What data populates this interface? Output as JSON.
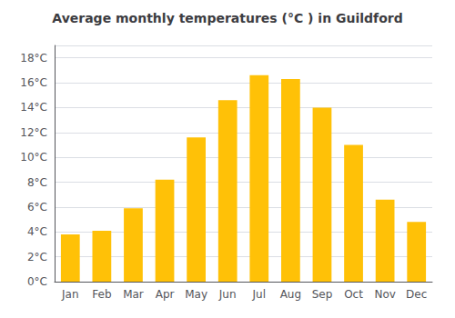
{
  "chart_data": {
    "type": "bar",
    "title": "Average monthly temperatures (°C ) in Guildford",
    "categories": [
      "Jan",
      "Feb",
      "Mar",
      "Apr",
      "May",
      "Jun",
      "Jul",
      "Aug",
      "Sep",
      "Oct",
      "Nov",
      "Dec"
    ],
    "values": [
      3.8,
      4.1,
      5.9,
      8.2,
      11.6,
      14.6,
      16.6,
      16.3,
      14.0,
      11.0,
      6.6,
      4.8
    ],
    "color": "#FFC107",
    "ylim": [
      0,
      19
    ],
    "yticks": [
      {
        "value": 0,
        "label": "0°C"
      },
      {
        "value": 2,
        "label": "2°C"
      },
      {
        "value": 4,
        "label": "4°C"
      },
      {
        "value": 6,
        "label": "6°C"
      },
      {
        "value": 8,
        "label": "8°C"
      },
      {
        "value": 10,
        "label": "10°C"
      },
      {
        "value": 12,
        "label": "12°C"
      },
      {
        "value": 14,
        "label": "14°C"
      },
      {
        "value": 16,
        "label": "16°C"
      },
      {
        "value": 18,
        "label": "18°C"
      }
    ],
    "grid": true
  }
}
